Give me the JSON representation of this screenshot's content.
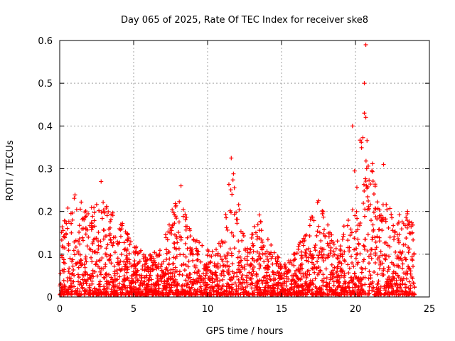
{
  "chart_data": {
    "type": "scatter",
    "title": "Day 065 of 2025, Rate Of TEC Index for receiver ske8",
    "xlabel": "GPS time / hours",
    "ylabel": "ROTI / TECUs",
    "xlim": [
      0,
      25
    ],
    "ylim": [
      0,
      0.6
    ],
    "xticks": [
      0,
      5,
      10,
      15,
      20,
      25
    ],
    "yticks": [
      0,
      0.1,
      0.2,
      0.3,
      0.4,
      0.5,
      0.6
    ],
    "xtick_labels": [
      "0",
      "5",
      "10",
      "15",
      "20",
      "25"
    ],
    "ytick_labels": [
      "0",
      "0.1",
      "0.2",
      "0.3",
      "0.4",
      "0.5",
      "0.6"
    ],
    "grid": true,
    "marker": "+",
    "marker_color": "#ff0000",
    "x_range_of_data": [
      0,
      24
    ],
    "notable_points": [
      {
        "x": 2.8,
        "y": 0.27
      },
      {
        "x": 8.2,
        "y": 0.26
      },
      {
        "x": 11.6,
        "y": 0.325
      },
      {
        "x": 20.7,
        "y": 0.59
      },
      {
        "x": 20.6,
        "y": 0.5
      },
      {
        "x": 20.6,
        "y": 0.43
      },
      {
        "x": 20.7,
        "y": 0.42
      },
      {
        "x": 19.8,
        "y": 0.4
      },
      {
        "x": 21.9,
        "y": 0.31
      },
      {
        "x": 17.5,
        "y": 0.225
      }
    ],
    "envelope": [
      {
        "x": 0,
        "y": 0.16
      },
      {
        "x": 1,
        "y": 0.24
      },
      {
        "x": 2,
        "y": 0.21
      },
      {
        "x": 3,
        "y": 0.22
      },
      {
        "x": 4,
        "y": 0.185
      },
      {
        "x": 5,
        "y": 0.12
      },
      {
        "x": 6,
        "y": 0.09
      },
      {
        "x": 7,
        "y": 0.12
      },
      {
        "x": 8,
        "y": 0.25
      },
      {
        "x": 9,
        "y": 0.14
      },
      {
        "x": 10,
        "y": 0.11
      },
      {
        "x": 11,
        "y": 0.13
      },
      {
        "x": 11.6,
        "y": 0.325
      },
      {
        "x": 12.5,
        "y": 0.13
      },
      {
        "x": 13.5,
        "y": 0.19
      },
      {
        "x": 14.5,
        "y": 0.1
      },
      {
        "x": 15.5,
        "y": 0.08
      },
      {
        "x": 16.5,
        "y": 0.14
      },
      {
        "x": 17.5,
        "y": 0.225
      },
      {
        "x": 18.5,
        "y": 0.13
      },
      {
        "x": 19.5,
        "y": 0.18
      },
      {
        "x": 20.5,
        "y": 0.43
      },
      {
        "x": 21.5,
        "y": 0.24
      },
      {
        "x": 22.5,
        "y": 0.2
      },
      {
        "x": 23.5,
        "y": 0.21
      },
      {
        "x": 24,
        "y": 0.15
      }
    ]
  }
}
